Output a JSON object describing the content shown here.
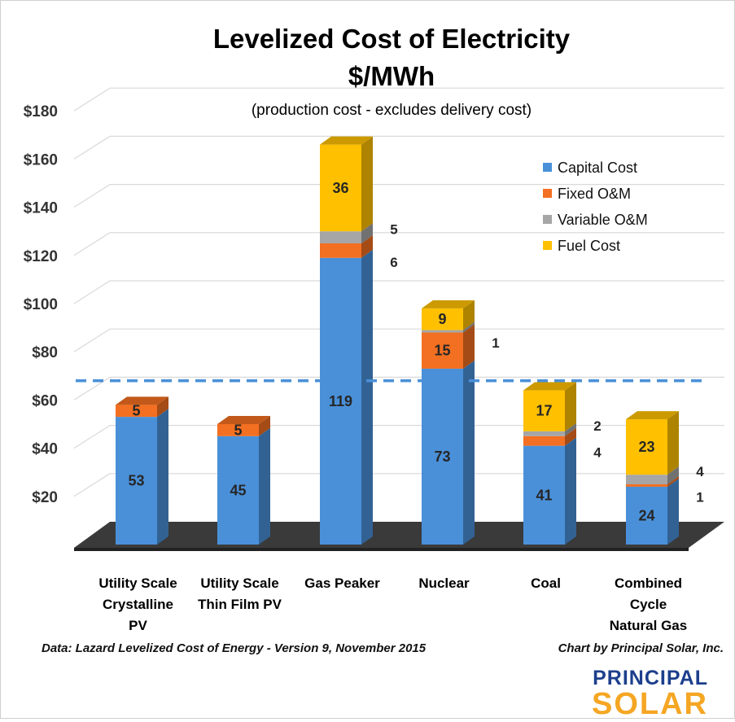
{
  "chart_data": {
    "type": "bar",
    "stacked": true,
    "title": "Levelized Cost of Electricity",
    "title_line2": "$/MWh",
    "subtitle": "(production cost - excludes delivery cost)",
    "categories": [
      [
        "Utility Scale",
        "Crystalline",
        "PV"
      ],
      [
        "Utility Scale",
        "Thin Film PV"
      ],
      [
        "Gas Peaker"
      ],
      [
        "Nuclear"
      ],
      [
        "Coal"
      ],
      [
        "Combined",
        "Cycle",
        "Natural Gas"
      ]
    ],
    "series": [
      {
        "name": "Capital Cost",
        "color": "#4a90d9",
        "values": [
          53,
          45,
          119,
          73,
          41,
          24
        ]
      },
      {
        "name": "Fixed O&M",
        "color": "#f36f21",
        "values": [
          5,
          5,
          6,
          15,
          4,
          1
        ]
      },
      {
        "name": "Variable O&M",
        "color": "#a6a6a6",
        "values": [
          0,
          0,
          5,
          1,
          2,
          4
        ]
      },
      {
        "name": "Fuel Cost",
        "color": "#ffc000",
        "values": [
          0,
          0,
          36,
          9,
          17,
          23
        ]
      }
    ],
    "data_labels": [
      {
        "category": 0,
        "series": 0,
        "text": "53",
        "position": "inside"
      },
      {
        "category": 0,
        "series": 1,
        "text": "5",
        "position": "inside"
      },
      {
        "category": 1,
        "series": 0,
        "text": "45",
        "position": "inside"
      },
      {
        "category": 1,
        "series": 1,
        "text": "5",
        "position": "inside"
      },
      {
        "category": 2,
        "series": 0,
        "text": "119",
        "position": "inside"
      },
      {
        "category": 2,
        "series": 1,
        "text": "6",
        "position": "side"
      },
      {
        "category": 2,
        "series": 2,
        "text": "5",
        "position": "side"
      },
      {
        "category": 2,
        "series": 3,
        "text": "36",
        "position": "inside"
      },
      {
        "category": 3,
        "series": 0,
        "text": "73",
        "position": "inside"
      },
      {
        "category": 3,
        "series": 1,
        "text": "15",
        "position": "inside"
      },
      {
        "category": 3,
        "series": 2,
        "text": "1",
        "position": "side"
      },
      {
        "category": 3,
        "series": 3,
        "text": "9",
        "position": "inside"
      },
      {
        "category": 4,
        "series": 0,
        "text": "41",
        "position": "inside"
      },
      {
        "category": 4,
        "series": 1,
        "text": "4",
        "position": "side"
      },
      {
        "category": 4,
        "series": 2,
        "text": "2",
        "position": "side"
      },
      {
        "category": 4,
        "series": 3,
        "text": "17",
        "position": "inside"
      },
      {
        "category": 5,
        "series": 0,
        "text": "24",
        "position": "inside"
      },
      {
        "category": 5,
        "series": 1,
        "text": "1",
        "position": "side"
      },
      {
        "category": 5,
        "series": 2,
        "text": "4",
        "position": "side"
      },
      {
        "category": 5,
        "series": 3,
        "text": "23",
        "position": "inside"
      }
    ],
    "y_ticks": [
      "$20",
      "$40",
      "$60",
      "$80",
      "$100",
      "$120",
      "$140",
      "$160",
      "$180"
    ],
    "y_tick_values": [
      20,
      40,
      60,
      80,
      100,
      120,
      140,
      160,
      180
    ],
    "ylim": [
      0,
      180
    ],
    "reference_line": {
      "value": 68,
      "style": "dashed",
      "color": "#4a90d9"
    },
    "grid": true,
    "legend_position": "top-right",
    "three_d": true
  },
  "footer": {
    "source": "Data:  Lazard Levelized Cost of Energy - Version 9, November 2015",
    "credit": "Chart by Principal Solar, Inc."
  },
  "logo": {
    "top": "PRINCIPAL",
    "bottom": "SOLAR",
    "top_color": "#1d3f8c",
    "bottom_color": "#f5a623"
  }
}
